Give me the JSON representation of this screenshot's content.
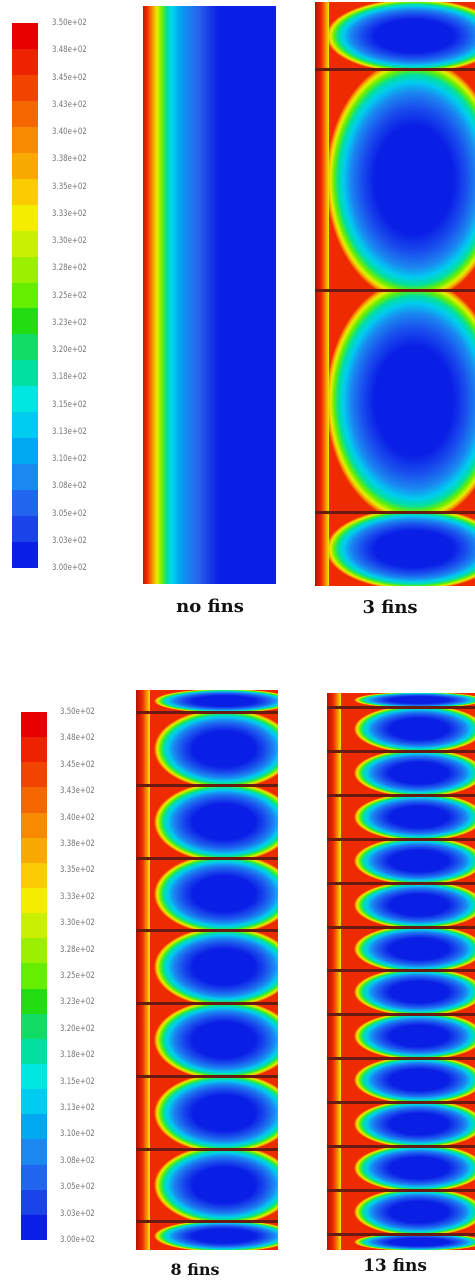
{
  "colorbar": {
    "ticks": [
      "3.50e+02",
      "3.48e+02",
      "3.45e+02",
      "3.43e+02",
      "3.40e+02",
      "3.38e+02",
      "3.35e+02",
      "3.33e+02",
      "3.30e+02",
      "3.28e+02",
      "3.25e+02",
      "3.23e+02",
      "3.20e+02",
      "3.18e+02",
      "3.15e+02",
      "3.13e+02",
      "3.10e+02",
      "3.08e+02",
      "3.05e+02",
      "3.03e+02",
      "3.00e+02"
    ],
    "colors": [
      "#e80000",
      "#ef2200",
      "#f24400",
      "#f46600",
      "#f78a00",
      "#f9aa00",
      "#fbcc00",
      "#f3ee00",
      "#c8f000",
      "#9af000",
      "#66ee00",
      "#22dd11",
      "#11dd66",
      "#00e0a0",
      "#00e6e0",
      "#00ccf0",
      "#00a8f0",
      "#1a88f0",
      "#2266f0",
      "#1a44ea",
      "#0a1fe6"
    ]
  },
  "panels": {
    "no_fins": {
      "caption": "no fins",
      "fins": 0
    },
    "fins_3": {
      "caption": "3 fins",
      "fins": 3
    },
    "fins_8": {
      "caption": "8 fins",
      "fins": 8
    },
    "fins_13": {
      "caption": "13 fins",
      "fins": 13
    }
  }
}
